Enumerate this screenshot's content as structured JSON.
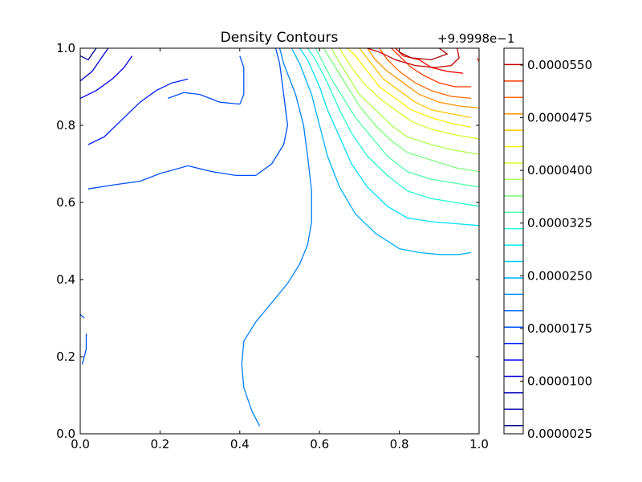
{
  "chart_data": {
    "type": "contour",
    "title": "Density Contours",
    "xlabel": "",
    "ylabel": "",
    "xlim": [
      0.0,
      1.0
    ],
    "ylim": [
      0.0,
      1.0
    ],
    "x_ticks": [
      "0.0",
      "0.2",
      "0.4",
      "0.6",
      "0.8",
      "1.0"
    ],
    "y_ticks": [
      "0.0",
      "0.2",
      "0.4",
      "0.6",
      "0.8",
      "1.0"
    ],
    "grid": false,
    "colorbar": {
      "offset_label": "+9.9998e−1",
      "tick_labels": [
        "0.0000025",
        "0.0000100",
        "0.0000175",
        "0.0000250",
        "0.0000325",
        "0.0000400",
        "0.0000475",
        "0.0000550"
      ],
      "levels_count": 23
    },
    "contours": [
      {
        "color": "#00008f",
        "points": [
          [
            0.0,
            0.98
          ],
          [
            0.02,
            0.97
          ],
          [
            0.04,
            1.0
          ]
        ]
      },
      {
        "color": "#0000c4",
        "points": [
          [
            0.0,
            0.915
          ],
          [
            0.03,
            0.94
          ],
          [
            0.05,
            0.97
          ],
          [
            0.07,
            1.0
          ]
        ]
      },
      {
        "color": "#0000f5",
        "points": [
          [
            0.0,
            0.87
          ],
          [
            0.04,
            0.89
          ],
          [
            0.08,
            0.92
          ],
          [
            0.11,
            0.95
          ],
          [
            0.13,
            0.98
          ]
        ]
      },
      {
        "color": "#0020ff",
        "points": [
          [
            0.02,
            0.75
          ],
          [
            0.06,
            0.77
          ],
          [
            0.1,
            0.81
          ],
          [
            0.15,
            0.86
          ],
          [
            0.19,
            0.89
          ],
          [
            0.23,
            0.91
          ],
          [
            0.27,
            0.92
          ]
        ]
      },
      {
        "color": "#0050ff",
        "points": [
          [
            0.02,
            0.635
          ],
          [
            0.08,
            0.645
          ],
          [
            0.15,
            0.655
          ],
          [
            0.2,
            0.675
          ],
          [
            0.27,
            0.695
          ],
          [
            0.33,
            0.68
          ],
          [
            0.39,
            0.67
          ],
          [
            0.44,
            0.67
          ],
          [
            0.48,
            0.7
          ],
          [
            0.51,
            0.75
          ],
          [
            0.52,
            0.8
          ],
          [
            0.51,
            0.88
          ],
          [
            0.5,
            0.96
          ],
          [
            0.49,
            1.0
          ]
        ]
      },
      {
        "color": "#0050ff",
        "points": [
          [
            0.22,
            0.87
          ],
          [
            0.26,
            0.885
          ],
          [
            0.3,
            0.88
          ],
          [
            0.35,
            0.86
          ],
          [
            0.4,
            0.855
          ],
          [
            0.41,
            0.88
          ],
          [
            0.41,
            0.95
          ],
          [
            0.4,
            0.98
          ]
        ]
      },
      {
        "color": "#0050ff",
        "points": [
          [
            0.0,
            0.31
          ],
          [
            0.01,
            0.3
          ]
        ]
      },
      {
        "color": "#0050ff",
        "points": [
          [
            0.015,
            0.26
          ],
          [
            0.015,
            0.22
          ],
          [
            0.01,
            0.2
          ],
          [
            0.005,
            0.18
          ]
        ]
      },
      {
        "color": "#0080ff",
        "points": [
          [
            0.45,
            0.02
          ],
          [
            0.43,
            0.06
          ],
          [
            0.41,
            0.12
          ],
          [
            0.405,
            0.18
          ],
          [
            0.41,
            0.24
          ],
          [
            0.44,
            0.29
          ],
          [
            0.48,
            0.34
          ],
          [
            0.52,
            0.39
          ],
          [
            0.55,
            0.44
          ],
          [
            0.57,
            0.49
          ],
          [
            0.58,
            0.55
          ],
          [
            0.58,
            0.63
          ],
          [
            0.57,
            0.72
          ],
          [
            0.56,
            0.8
          ],
          [
            0.54,
            0.88
          ],
          [
            0.51,
            0.96
          ],
          [
            0.5,
            1.0
          ]
        ]
      },
      {
        "color": "#00b0ff",
        "points": [
          [
            0.98,
            0.47
          ],
          [
            0.95,
            0.465
          ],
          [
            0.9,
            0.465
          ],
          [
            0.85,
            0.47
          ],
          [
            0.8,
            0.48
          ],
          [
            0.74,
            0.52
          ],
          [
            0.69,
            0.57
          ],
          [
            0.65,
            0.64
          ],
          [
            0.62,
            0.72
          ],
          [
            0.6,
            0.8
          ],
          [
            0.58,
            0.88
          ],
          [
            0.55,
            0.96
          ],
          [
            0.53,
            1.0
          ]
        ]
      },
      {
        "color": "#00e0fb",
        "points": [
          [
            1.0,
            0.54
          ],
          [
            0.94,
            0.545
          ],
          [
            0.88,
            0.55
          ],
          [
            0.82,
            0.56
          ],
          [
            0.77,
            0.59
          ],
          [
            0.72,
            0.64
          ],
          [
            0.68,
            0.7
          ],
          [
            0.65,
            0.77
          ],
          [
            0.62,
            0.84
          ],
          [
            0.6,
            0.9
          ],
          [
            0.57,
            0.97
          ],
          [
            0.55,
            1.0
          ]
        ]
      },
      {
        "color": "#22ffd4",
        "points": [
          [
            1.0,
            0.59
          ],
          [
            0.94,
            0.6
          ],
          [
            0.88,
            0.61
          ],
          [
            0.82,
            0.63
          ],
          [
            0.77,
            0.67
          ],
          [
            0.72,
            0.72
          ],
          [
            0.68,
            0.78
          ],
          [
            0.65,
            0.84
          ],
          [
            0.62,
            0.91
          ],
          [
            0.59,
            0.97
          ],
          [
            0.57,
            1.0
          ]
        ]
      },
      {
        "color": "#4dffaa",
        "points": [
          [
            1.0,
            0.64
          ],
          [
            0.94,
            0.65
          ],
          [
            0.88,
            0.66
          ],
          [
            0.82,
            0.68
          ],
          [
            0.77,
            0.72
          ],
          [
            0.73,
            0.77
          ],
          [
            0.69,
            0.82
          ],
          [
            0.66,
            0.87
          ],
          [
            0.63,
            0.92
          ],
          [
            0.6,
            0.98
          ],
          [
            0.59,
            1.0
          ]
        ]
      },
      {
        "color": "#7dff7a",
        "points": [
          [
            1.0,
            0.68
          ],
          [
            0.94,
            0.69
          ],
          [
            0.88,
            0.71
          ],
          [
            0.82,
            0.73
          ],
          [
            0.78,
            0.76
          ],
          [
            0.74,
            0.8
          ],
          [
            0.7,
            0.85
          ],
          [
            0.67,
            0.9
          ],
          [
            0.64,
            0.95
          ],
          [
            0.61,
            1.0
          ]
        ]
      },
      {
        "color": "#aaff4d",
        "points": [
          [
            1.0,
            0.725
          ],
          [
            0.94,
            0.735
          ],
          [
            0.88,
            0.75
          ],
          [
            0.82,
            0.77
          ],
          [
            0.78,
            0.8
          ],
          [
            0.74,
            0.84
          ],
          [
            0.7,
            0.88
          ],
          [
            0.67,
            0.93
          ],
          [
            0.64,
            0.98
          ],
          [
            0.63,
            1.0
          ]
        ]
      },
      {
        "color": "#d4ff22",
        "points": [
          [
            1.0,
            0.765
          ],
          [
            0.94,
            0.775
          ],
          [
            0.88,
            0.79
          ],
          [
            0.83,
            0.81
          ],
          [
            0.79,
            0.84
          ],
          [
            0.75,
            0.87
          ],
          [
            0.71,
            0.91
          ],
          [
            0.68,
            0.95
          ],
          [
            0.65,
            1.0
          ]
        ]
      },
      {
        "color": "#fbf100",
        "points": [
          [
            0.98,
            0.795
          ],
          [
            0.93,
            0.805
          ],
          [
            0.88,
            0.82
          ],
          [
            0.83,
            0.84
          ],
          [
            0.79,
            0.87
          ],
          [
            0.75,
            0.9
          ],
          [
            0.72,
            0.94
          ],
          [
            0.69,
            0.98
          ],
          [
            0.67,
            1.0
          ]
        ]
      },
      {
        "color": "#ffc400",
        "points": [
          [
            0.98,
            0.82
          ],
          [
            0.93,
            0.83
          ],
          [
            0.88,
            0.84
          ],
          [
            0.84,
            0.86
          ],
          [
            0.8,
            0.89
          ],
          [
            0.76,
            0.92
          ],
          [
            0.73,
            0.96
          ],
          [
            0.7,
            1.0
          ]
        ]
      },
      {
        "color": "#ff9400",
        "points": [
          [
            1.0,
            0.845
          ],
          [
            0.95,
            0.85
          ],
          [
            0.9,
            0.86
          ],
          [
            0.85,
            0.88
          ],
          [
            0.81,
            0.91
          ],
          [
            0.77,
            0.94
          ],
          [
            0.74,
            0.97
          ],
          [
            0.72,
            1.0
          ]
        ]
      },
      {
        "color": "#ff6800",
        "points": [
          [
            0.98,
            0.87
          ],
          [
            0.93,
            0.875
          ],
          [
            0.88,
            0.89
          ],
          [
            0.84,
            0.91
          ],
          [
            0.8,
            0.94
          ],
          [
            0.77,
            0.97
          ],
          [
            0.75,
            1.0
          ]
        ]
      },
      {
        "color": "#ff3800",
        "points": [
          [
            0.98,
            0.9
          ],
          [
            0.94,
            0.9
          ],
          [
            0.9,
            0.91
          ],
          [
            0.86,
            0.93
          ],
          [
            0.83,
            0.95
          ],
          [
            0.8,
            0.98
          ],
          [
            0.78,
            1.0
          ]
        ]
      },
      {
        "color": "#f50b00",
        "points": [
          [
            0.96,
            0.935
          ],
          [
            0.92,
            0.94
          ],
          [
            0.88,
            0.95
          ],
          [
            0.85,
            0.97
          ],
          [
            0.81,
            0.98
          ],
          [
            0.79,
            1.0
          ]
        ]
      },
      {
        "color": "#c40000",
        "points": [
          [
            0.72,
            1.0
          ],
          [
            0.75,
            0.99
          ],
          [
            0.79,
            0.97
          ],
          [
            0.84,
            0.955
          ],
          [
            0.89,
            0.95
          ],
          [
            0.93,
            0.955
          ],
          [
            0.95,
            0.975
          ],
          [
            0.945,
            1.0
          ]
        ]
      },
      {
        "color": "#a40000",
        "points": [
          [
            0.8,
            0.99
          ],
          [
            0.83,
            0.975
          ],
          [
            0.88,
            0.97
          ],
          [
            0.92,
            0.985
          ],
          [
            0.9,
            1.0
          ]
        ]
      },
      {
        "color": "#ff3800",
        "points": [
          [
            0.995,
            0.975
          ],
          [
            1.0,
            0.965
          ]
        ]
      }
    ]
  }
}
